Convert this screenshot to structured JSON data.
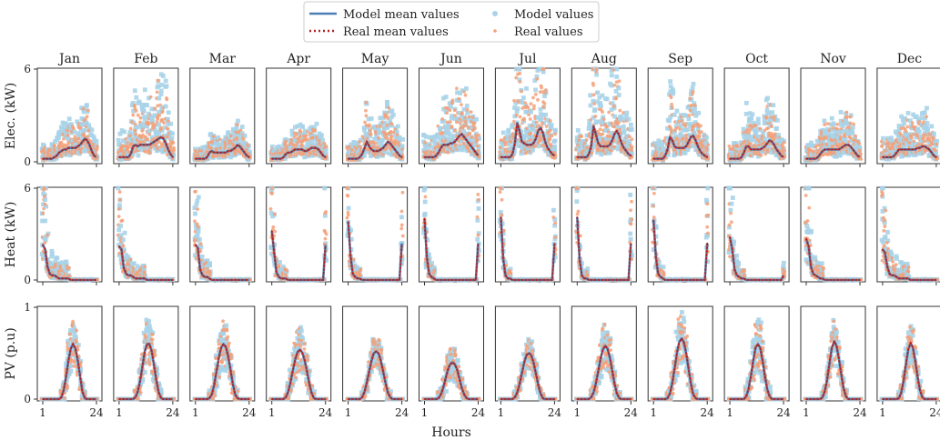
{
  "chart_data": {
    "type": "scatter",
    "layout": "3x12 small-multiples grid with shared axes",
    "legend": {
      "placement": "top-center",
      "entries": [
        {
          "label": "Model mean values",
          "kind": "line",
          "color": "#4a7fb5"
        },
        {
          "label": "Real mean values",
          "kind": "dotted-line",
          "color": "#b22222"
        },
        {
          "label": "Model values",
          "kind": "marker",
          "color": "#a8d3e8"
        },
        {
          "label": "Real values",
          "kind": "marker",
          "color": "#f5a078"
        }
      ]
    },
    "xlabel": "Hours",
    "xticks": [
      "1",
      "24"
    ],
    "xlim": [
      1,
      24
    ],
    "months": [
      "Jan",
      "Feb",
      "Mar",
      "Apr",
      "May",
      "Jun",
      "Jul",
      "Aug",
      "Sep",
      "Oct",
      "Nov",
      "Dec"
    ],
    "colors": {
      "model_line": "#4a7fb5",
      "real_line": "#b22222",
      "model_points": "#a8d3e8",
      "real_points": "#f5a078",
      "axes": "#333333"
    },
    "rows": [
      {
        "ylabel": "Elec. (kW)",
        "ylim": [
          0,
          6
        ],
        "yticks": [
          "0",
          "6"
        ],
        "mean_series": [
          [
            0.2,
            0.2,
            0.2,
            0.2,
            0.2,
            0.3,
            0.4,
            0.6,
            0.7,
            0.8,
            0.8,
            0.9,
            0.9,
            0.9,
            0.9,
            1.0,
            1.1,
            1.3,
            1.5,
            1.4,
            1.1,
            0.7,
            0.4,
            0.3
          ],
          [
            0.3,
            0.3,
            0.3,
            0.3,
            0.3,
            0.5,
            1.0,
            1.1,
            1.0,
            1.1,
            1.1,
            1.1,
            1.1,
            1.1,
            1.2,
            1.3,
            1.4,
            1.5,
            1.6,
            1.5,
            1.2,
            0.8,
            0.5,
            0.3
          ],
          [
            0.2,
            0.2,
            0.2,
            0.2,
            0.2,
            0.3,
            0.6,
            0.7,
            0.6,
            0.6,
            0.6,
            0.6,
            0.6,
            0.6,
            0.7,
            0.7,
            0.8,
            0.9,
            1.1,
            1.0,
            0.8,
            0.6,
            0.4,
            0.3
          ],
          [
            0.2,
            0.2,
            0.2,
            0.2,
            0.2,
            0.3,
            0.5,
            0.6,
            0.6,
            0.7,
            0.8,
            0.8,
            0.8,
            0.8,
            0.7,
            0.7,
            0.8,
            0.9,
            0.9,
            0.9,
            0.8,
            0.6,
            0.4,
            0.3
          ],
          [
            0.2,
            0.2,
            0.2,
            0.2,
            0.2,
            0.3,
            0.5,
            0.9,
            1.3,
            1.0,
            0.8,
            0.7,
            0.7,
            0.7,
            0.8,
            0.9,
            1.1,
            1.3,
            1.2,
            1.0,
            0.8,
            0.6,
            0.4,
            0.3
          ],
          [
            0.3,
            0.3,
            0.3,
            0.3,
            0.3,
            0.4,
            0.6,
            0.9,
            1.1,
            1.1,
            1.1,
            1.2,
            1.2,
            1.3,
            1.5,
            1.7,
            1.8,
            1.6,
            1.4,
            1.2,
            1.0,
            0.8,
            0.6,
            0.4
          ],
          [
            0.3,
            0.3,
            0.3,
            0.3,
            0.3,
            0.5,
            1.2,
            2.5,
            2.0,
            1.3,
            1.2,
            1.1,
            1.1,
            1.1,
            1.2,
            1.5,
            2.0,
            2.2,
            1.9,
            1.3,
            0.9,
            0.7,
            0.5,
            0.4
          ],
          [
            0.3,
            0.3,
            0.3,
            0.3,
            0.3,
            0.5,
            1.0,
            2.3,
            1.8,
            1.2,
            1.0,
            1.0,
            1.0,
            1.0,
            1.1,
            1.4,
            1.8,
            2.0,
            1.7,
            1.2,
            0.9,
            0.7,
            0.5,
            0.4
          ],
          [
            0.2,
            0.2,
            0.2,
            0.2,
            0.2,
            0.4,
            0.8,
            1.6,
            1.4,
            1.0,
            0.9,
            0.9,
            0.9,
            0.9,
            1.0,
            1.3,
            1.6,
            1.7,
            1.4,
            1.0,
            0.7,
            0.5,
            0.4,
            0.3
          ],
          [
            0.2,
            0.2,
            0.2,
            0.2,
            0.2,
            0.3,
            0.6,
            1.0,
            1.0,
            0.8,
            0.8,
            0.8,
            0.8,
            0.8,
            0.9,
            1.0,
            1.2,
            1.4,
            1.3,
            1.1,
            0.8,
            0.6,
            0.4,
            0.3
          ],
          [
            0.2,
            0.2,
            0.2,
            0.2,
            0.2,
            0.3,
            0.5,
            0.7,
            0.8,
            0.8,
            0.8,
            0.8,
            0.8,
            0.8,
            0.8,
            0.9,
            1.0,
            1.1,
            1.1,
            1.0,
            0.8,
            0.6,
            0.4,
            0.3
          ],
          [
            0.3,
            0.3,
            0.3,
            0.3,
            0.3,
            0.4,
            0.6,
            0.8,
            0.8,
            0.8,
            0.8,
            0.8,
            0.8,
            0.8,
            0.8,
            0.9,
            0.9,
            1.0,
            1.0,
            0.9,
            0.8,
            0.6,
            0.4,
            0.3
          ]
        ],
        "spread": [
          1.6,
          2.4,
          1.3,
          1.4,
          1.8,
          2.2,
          2.4,
          2.6,
          2.0,
          1.9,
          1.7,
          2.0
        ]
      },
      {
        "ylabel": "Heat (kW)",
        "ylim": [
          0,
          6
        ],
        "yticks": [
          "0",
          "6"
        ],
        "mean_series": [
          [
            2.3,
            2.0,
            0.9,
            0.4,
            0.3,
            0.3,
            0.2,
            0.1,
            0.1,
            0.1,
            0.1,
            0.1,
            0.0,
            0.0,
            0.0,
            0.0,
            0.0,
            0.0,
            0.0,
            0.0,
            0.0,
            0.0,
            0.0,
            0.0
          ],
          [
            2.2,
            2.0,
            0.8,
            0.4,
            0.3,
            0.3,
            0.2,
            0.1,
            0.1,
            0.1,
            0.1,
            0.1,
            0.0,
            0.0,
            0.0,
            0.0,
            0.0,
            0.0,
            0.0,
            0.0,
            0.0,
            0.0,
            0.0,
            0.0
          ],
          [
            2.3,
            2.1,
            0.7,
            0.3,
            0.2,
            0.2,
            0.1,
            0.0,
            0.0,
            0.0,
            0.0,
            0.0,
            0.0,
            0.0,
            0.0,
            0.0,
            0.0,
            0.0,
            0.0,
            0.0,
            0.0,
            0.0,
            0.0,
            0.0
          ],
          [
            3.2,
            1.8,
            0.5,
            0.2,
            0.1,
            0.1,
            0.1,
            0.0,
            0.0,
            0.0,
            0.0,
            0.0,
            0.0,
            0.0,
            0.0,
            0.0,
            0.0,
            0.0,
            0.0,
            0.0,
            0.0,
            0.0,
            0.0,
            2.3
          ],
          [
            3.8,
            1.6,
            0.4,
            0.2,
            0.1,
            0.1,
            0.0,
            0.0,
            0.0,
            0.0,
            0.0,
            0.0,
            0.0,
            0.0,
            0.0,
            0.0,
            0.0,
            0.0,
            0.0,
            0.0,
            0.0,
            0.0,
            0.0,
            2.4
          ],
          [
            4.0,
            1.5,
            0.4,
            0.2,
            0.1,
            0.0,
            0.0,
            0.0,
            0.0,
            0.0,
            0.0,
            0.0,
            0.0,
            0.0,
            0.0,
            0.0,
            0.0,
            0.0,
            0.0,
            0.0,
            0.0,
            0.0,
            0.0,
            2.4
          ],
          [
            4.1,
            1.4,
            0.3,
            0.1,
            0.1,
            0.0,
            0.0,
            0.0,
            0.0,
            0.0,
            0.0,
            0.0,
            0.0,
            0.0,
            0.0,
            0.0,
            0.0,
            0.0,
            0.0,
            0.0,
            0.0,
            0.0,
            0.0,
            2.4
          ],
          [
            4.1,
            1.4,
            0.3,
            0.1,
            0.1,
            0.0,
            0.0,
            0.0,
            0.0,
            0.0,
            0.0,
            0.0,
            0.0,
            0.0,
            0.0,
            0.0,
            0.0,
            0.0,
            0.0,
            0.0,
            0.0,
            0.0,
            0.0,
            2.4
          ],
          [
            3.9,
            1.5,
            0.4,
            0.2,
            0.1,
            0.0,
            0.0,
            0.0,
            0.0,
            0.0,
            0.0,
            0.0,
            0.0,
            0.0,
            0.0,
            0.0,
            0.0,
            0.0,
            0.0,
            0.0,
            0.0,
            0.0,
            0.0,
            2.4
          ],
          [
            2.8,
            2.0,
            0.7,
            0.3,
            0.2,
            0.1,
            0.1,
            0.0,
            0.0,
            0.0,
            0.0,
            0.0,
            0.0,
            0.0,
            0.0,
            0.0,
            0.0,
            0.0,
            0.0,
            0.0,
            0.0,
            0.0,
            0.0,
            0.3
          ],
          [
            2.7,
            2.2,
            0.9,
            0.4,
            0.3,
            0.2,
            0.1,
            0.1,
            0.0,
            0.0,
            0.0,
            0.0,
            0.0,
            0.0,
            0.0,
            0.0,
            0.0,
            0.0,
            0.0,
            0.0,
            0.0,
            0.0,
            0.0,
            0.0
          ],
          [
            2.0,
            1.8,
            0.9,
            0.4,
            0.3,
            0.3,
            0.2,
            0.1,
            0.1,
            0.1,
            0.1,
            0.1,
            0.0,
            0.0,
            0.0,
            0.0,
            0.0,
            0.0,
            0.0,
            0.0,
            0.0,
            0.0,
            0.0,
            0.0
          ]
        ],
        "spread": [
          2.2,
          2.0,
          2.0,
          1.6,
          1.6,
          1.6,
          1.4,
          1.4,
          1.5,
          1.8,
          2.0,
          2.2
        ]
      },
      {
        "ylabel": "PV (p.u)",
        "ylim": [
          0,
          1
        ],
        "yticks": [
          "0",
          "1"
        ],
        "mean_series": [
          [
            0,
            0,
            0,
            0,
            0,
            0,
            0,
            0,
            0.02,
            0.1,
            0.25,
            0.42,
            0.55,
            0.6,
            0.55,
            0.42,
            0.25,
            0.08,
            0.01,
            0,
            0,
            0,
            0,
            0
          ],
          [
            0,
            0,
            0,
            0,
            0,
            0,
            0,
            0.02,
            0.08,
            0.2,
            0.36,
            0.52,
            0.6,
            0.6,
            0.52,
            0.36,
            0.2,
            0.07,
            0.01,
            0,
            0,
            0,
            0,
            0
          ],
          [
            0,
            0,
            0,
            0,
            0,
            0,
            0.01,
            0.05,
            0.15,
            0.3,
            0.45,
            0.56,
            0.6,
            0.57,
            0.47,
            0.32,
            0.17,
            0.05,
            0.01,
            0,
            0,
            0,
            0,
            0
          ],
          [
            0,
            0,
            0,
            0,
            0,
            0,
            0.02,
            0.08,
            0.18,
            0.31,
            0.43,
            0.51,
            0.54,
            0.51,
            0.43,
            0.31,
            0.18,
            0.07,
            0.01,
            0,
            0,
            0,
            0,
            0
          ],
          [
            0,
            0,
            0,
            0,
            0,
            0,
            0.02,
            0.08,
            0.18,
            0.3,
            0.42,
            0.5,
            0.52,
            0.5,
            0.42,
            0.3,
            0.18,
            0.07,
            0.02,
            0,
            0,
            0,
            0,
            0
          ],
          [
            0,
            0,
            0,
            0,
            0,
            0,
            0.01,
            0.05,
            0.12,
            0.22,
            0.32,
            0.38,
            0.4,
            0.38,
            0.32,
            0.22,
            0.12,
            0.05,
            0.01,
            0,
            0,
            0,
            0,
            0
          ],
          [
            0,
            0,
            0,
            0,
            0,
            0,
            0.02,
            0.07,
            0.16,
            0.28,
            0.4,
            0.48,
            0.5,
            0.48,
            0.4,
            0.28,
            0.16,
            0.06,
            0.01,
            0,
            0,
            0,
            0,
            0
          ],
          [
            0,
            0,
            0,
            0,
            0,
            0,
            0.02,
            0.07,
            0.17,
            0.3,
            0.44,
            0.54,
            0.58,
            0.55,
            0.45,
            0.31,
            0.17,
            0.06,
            0.01,
            0,
            0,
            0,
            0,
            0
          ],
          [
            0,
            0,
            0,
            0,
            0,
            0,
            0.01,
            0.06,
            0.17,
            0.33,
            0.5,
            0.62,
            0.66,
            0.62,
            0.5,
            0.33,
            0.17,
            0.05,
            0.01,
            0,
            0,
            0,
            0,
            0
          ],
          [
            0,
            0,
            0,
            0,
            0,
            0,
            0,
            0.03,
            0.11,
            0.25,
            0.42,
            0.56,
            0.6,
            0.56,
            0.42,
            0.25,
            0.11,
            0.03,
            0,
            0,
            0,
            0,
            0,
            0
          ],
          [
            0,
            0,
            0,
            0,
            0,
            0,
            0,
            0.02,
            0.09,
            0.22,
            0.4,
            0.56,
            0.63,
            0.58,
            0.44,
            0.27,
            0.12,
            0.03,
            0,
            0,
            0,
            0,
            0,
            0
          ],
          [
            0,
            0,
            0,
            0,
            0,
            0,
            0,
            0.01,
            0.07,
            0.2,
            0.38,
            0.54,
            0.61,
            0.56,
            0.42,
            0.24,
            0.1,
            0.02,
            0,
            0,
            0,
            0,
            0,
            0
          ]
        ],
        "spread": [
          0.3,
          0.3,
          0.3,
          0.3,
          0.2,
          0.28,
          0.2,
          0.3,
          0.3,
          0.32,
          0.25,
          0.25
        ]
      }
    ]
  }
}
